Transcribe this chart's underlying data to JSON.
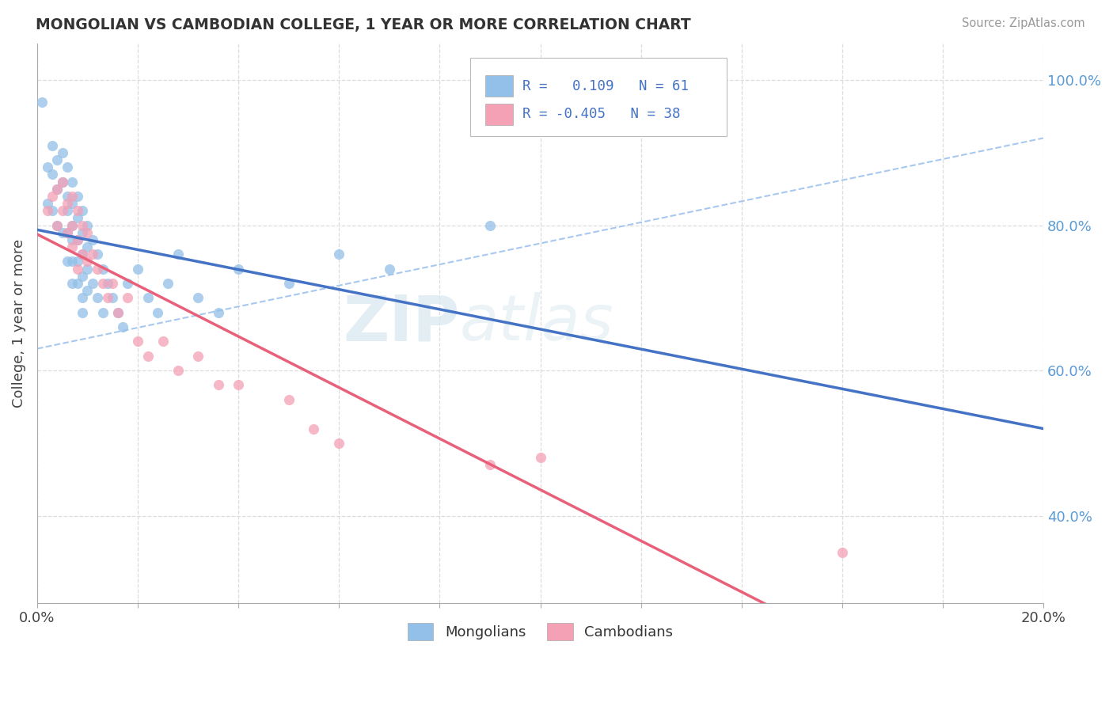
{
  "title": "MONGOLIAN VS CAMBODIAN COLLEGE, 1 YEAR OR MORE CORRELATION CHART",
  "source": "Source: ZipAtlas.com",
  "ylabel": "College, 1 year or more",
  "xlim": [
    0.0,
    0.2
  ],
  "ylim": [
    0.28,
    1.05
  ],
  "right_yticks": [
    0.4,
    0.6,
    0.8,
    1.0
  ],
  "right_yticklabels": [
    "40.0%",
    "60.0%",
    "80.0%",
    "100.0%"
  ],
  "xticks": [
    0.0,
    0.02,
    0.04,
    0.06,
    0.08,
    0.1,
    0.12,
    0.14,
    0.16,
    0.18,
    0.2
  ],
  "mongolian_color": "#92C0E8",
  "cambodian_color": "#F4A0B5",
  "mongolian_line_color": "#4472C4",
  "cambodian_line_color": "#E8607A",
  "ref_line_color": "#A8C8F0",
  "watermark_zip": "ZIP",
  "watermark_atlas": "atlas",
  "background_color": "#FFFFFF",
  "grid_color": "#DDDDDD",
  "mongolian_x": [
    0.001,
    0.002,
    0.002,
    0.003,
    0.003,
    0.003,
    0.004,
    0.004,
    0.004,
    0.005,
    0.005,
    0.005,
    0.006,
    0.006,
    0.006,
    0.006,
    0.006,
    0.007,
    0.007,
    0.007,
    0.007,
    0.007,
    0.007,
    0.008,
    0.008,
    0.008,
    0.008,
    0.008,
    0.009,
    0.009,
    0.009,
    0.009,
    0.009,
    0.009,
    0.01,
    0.01,
    0.01,
    0.01,
    0.011,
    0.011,
    0.012,
    0.012,
    0.013,
    0.013,
    0.014,
    0.015,
    0.016,
    0.017,
    0.018,
    0.02,
    0.022,
    0.024,
    0.026,
    0.028,
    0.032,
    0.036,
    0.04,
    0.05,
    0.06,
    0.07,
    0.09
  ],
  "mongolian_y": [
    0.97,
    0.88,
    0.83,
    0.91,
    0.87,
    0.82,
    0.89,
    0.85,
    0.8,
    0.9,
    0.86,
    0.79,
    0.88,
    0.84,
    0.82,
    0.79,
    0.75,
    0.86,
    0.83,
    0.8,
    0.78,
    0.75,
    0.72,
    0.84,
    0.81,
    0.78,
    0.75,
    0.72,
    0.82,
    0.79,
    0.76,
    0.73,
    0.7,
    0.68,
    0.8,
    0.77,
    0.74,
    0.71,
    0.78,
    0.72,
    0.76,
    0.7,
    0.74,
    0.68,
    0.72,
    0.7,
    0.68,
    0.66,
    0.72,
    0.74,
    0.7,
    0.68,
    0.72,
    0.76,
    0.7,
    0.68,
    0.74,
    0.72,
    0.76,
    0.74,
    0.8
  ],
  "cambodian_x": [
    0.002,
    0.003,
    0.004,
    0.004,
    0.005,
    0.005,
    0.006,
    0.006,
    0.007,
    0.007,
    0.007,
    0.008,
    0.008,
    0.008,
    0.009,
    0.009,
    0.01,
    0.01,
    0.011,
    0.012,
    0.013,
    0.014,
    0.015,
    0.016,
    0.018,
    0.02,
    0.022,
    0.025,
    0.028,
    0.032,
    0.036,
    0.04,
    0.05,
    0.055,
    0.06,
    0.09,
    0.1,
    0.16
  ],
  "cambodian_y": [
    0.82,
    0.84,
    0.85,
    0.8,
    0.86,
    0.82,
    0.83,
    0.79,
    0.84,
    0.8,
    0.77,
    0.82,
    0.78,
    0.74,
    0.8,
    0.76,
    0.79,
    0.75,
    0.76,
    0.74,
    0.72,
    0.7,
    0.72,
    0.68,
    0.7,
    0.64,
    0.62,
    0.64,
    0.6,
    0.62,
    0.58,
    0.58,
    0.56,
    0.52,
    0.5,
    0.47,
    0.48,
    0.35
  ],
  "ref_line_x": [
    0.0,
    0.2
  ],
  "ref_line_y": [
    0.63,
    0.92
  ]
}
